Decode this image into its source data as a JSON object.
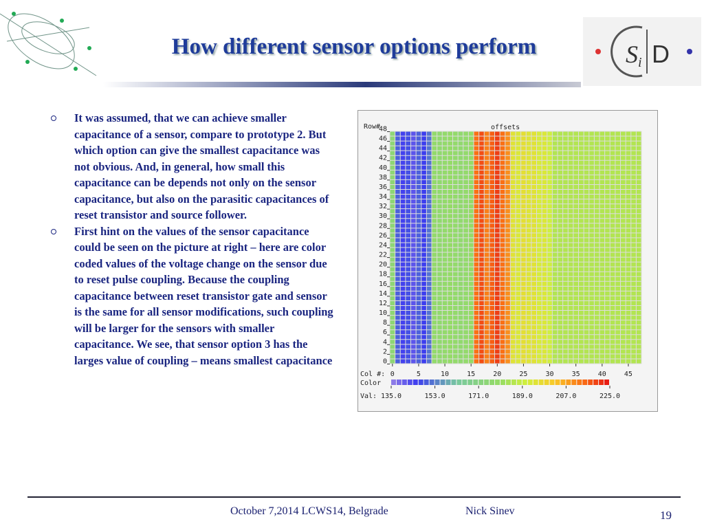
{
  "header": {
    "title": "How different sensor options perform"
  },
  "logo": {
    "left": "S",
    "sub": "i",
    "right": "D"
  },
  "bullets": [
    "It was assumed, that we can achieve smaller capacitance of a sensor, compare to prototype 2. But which option can give the smallest capacitance was not obvious. And, in general, how small this capacitance can be depends not only on the sensor capacitance, but also on the parasitic capacitances of reset transistor and source follower.",
    "First hint on the values of the sensor capacitance could be seen on the picture at right – here are color coded values of the voltage change on the sensor due to reset pulse coupling. Because the coupling capacitance between reset transistor gate and sensor is the same for all sensor modifications, such coupling will be larger for the sensors with smaller capacitance. We see, that sensor option 3 has the larges value of coupling – means smallest capacitance"
  ],
  "footer": {
    "event": "October 7,2014  LCWS14, Belgrade",
    "author": "Nick Sinev",
    "page": "19"
  },
  "chart_data": {
    "type": "heatmap",
    "title": "offsets",
    "y_label": "Row#",
    "x_label": "Col #:",
    "color_label": "Color",
    "value_label": "Val:",
    "x": [
      0,
      1,
      2,
      3,
      4,
      5,
      6,
      7,
      8,
      9,
      10,
      11,
      12,
      13,
      14,
      15,
      16,
      17,
      18,
      19,
      20,
      21,
      22,
      23,
      24,
      25,
      26,
      27,
      28,
      29,
      30,
      31,
      32,
      33,
      34,
      35,
      36,
      37,
      38,
      39,
      40,
      41,
      42,
      43,
      44,
      45,
      46,
      47
    ],
    "values": [
      175,
      150,
      145,
      148,
      142,
      150,
      146,
      152,
      178,
      177,
      178,
      179,
      178,
      177,
      178,
      179,
      214,
      218,
      212,
      216,
      220,
      214,
      210,
      195,
      193,
      196,
      194,
      195,
      192,
      193,
      190,
      185,
      185,
      185,
      185,
      185,
      185,
      185,
      185,
      185,
      185,
      185,
      185,
      185,
      185,
      185,
      185,
      185
    ],
    "xlim": [
      -0.5,
      47.5
    ],
    "xticks": [
      0,
      5,
      10,
      15,
      20,
      25,
      30,
      35,
      40,
      45
    ],
    "ylim": [
      -0.5,
      47.5
    ],
    "yticks": [
      0,
      2,
      4,
      6,
      8,
      10,
      12,
      14,
      16,
      18,
      20,
      22,
      24,
      26,
      28,
      30,
      32,
      34,
      36,
      38,
      40,
      42,
      44,
      46,
      48
    ],
    "clim": [
      135,
      225
    ],
    "cticks": [
      {
        "value": 135,
        "label": "135.0"
      },
      {
        "value": 153,
        "label": "153.0"
      },
      {
        "value": 171,
        "label": "171.0"
      },
      {
        "value": 189,
        "label": "189.0"
      },
      {
        "value": 207,
        "label": "207.0"
      },
      {
        "value": 225,
        "label": "225.0"
      }
    ]
  }
}
